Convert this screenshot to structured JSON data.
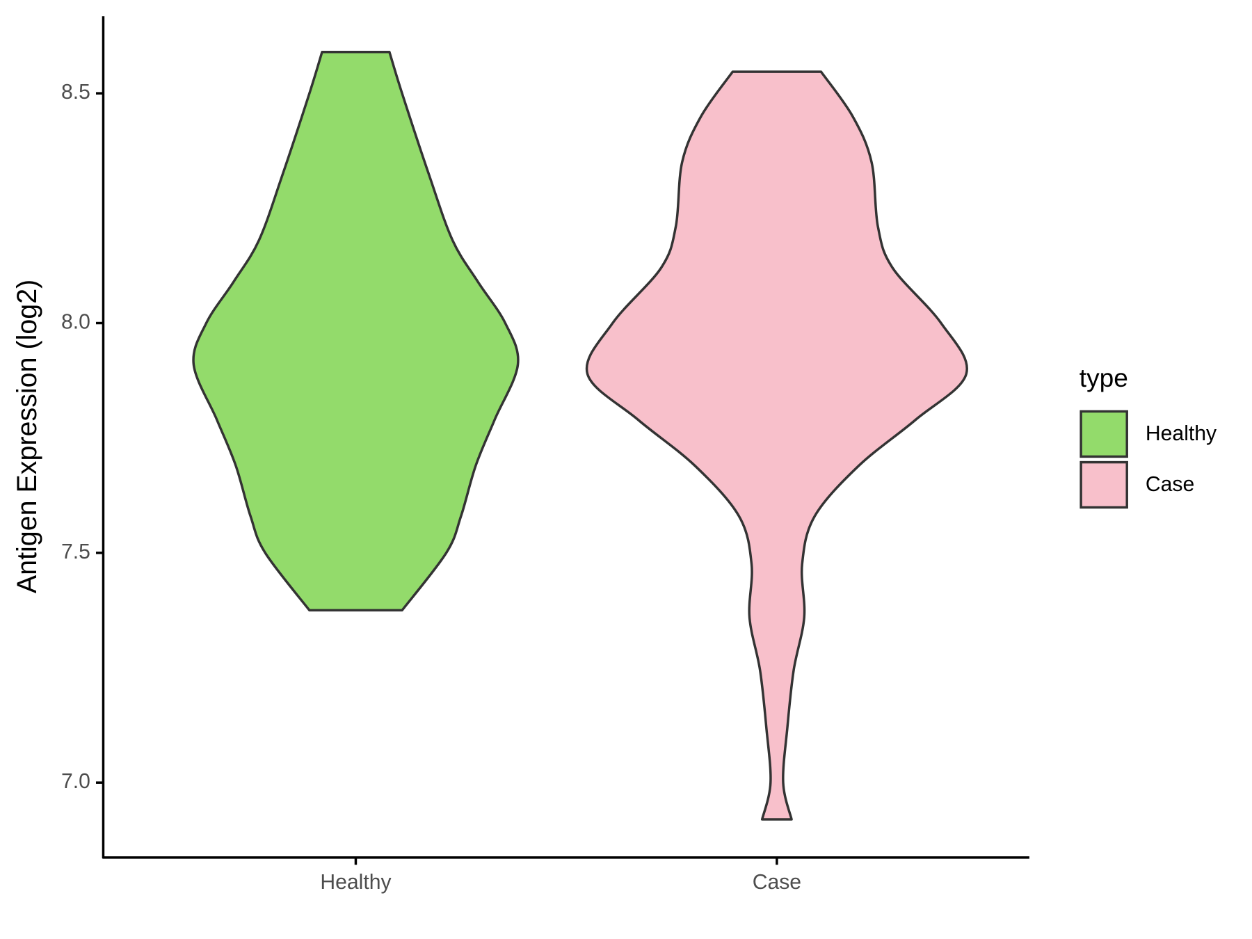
{
  "chart_data": {
    "type": "violin",
    "y_label": "Antigen Expression (log2)",
    "categories": [
      "Healthy",
      "Case"
    ],
    "ylim": [
      6.837,
      8.668
    ],
    "yticks": [
      {
        "value": 7.0,
        "label": "7.0"
      },
      {
        "value": 7.5,
        "label": "7.5"
      },
      {
        "value": 8.0,
        "label": "8.0"
      },
      {
        "value": 8.5,
        "label": "8.5"
      }
    ],
    "legend_title": "type",
    "legend_position": "right",
    "series": [
      {
        "name": "Healthy",
        "color": "#93db6b",
        "y": [
          8.59,
          8.5,
          8.32,
          8.18,
          8.09,
          8.0,
          7.91,
          7.79,
          7.69,
          7.58,
          7.5,
          7.375
        ],
        "width": [
          0.16,
          0.22,
          0.35,
          0.46,
          0.58,
          0.71,
          0.77,
          0.66,
          0.57,
          0.5,
          0.43,
          0.22
        ]
      },
      {
        "name": "Case",
        "color": "#f8c0cb",
        "y": [
          8.547,
          8.45,
          8.35,
          8.21,
          8.12,
          8.0,
          7.89,
          7.79,
          7.69,
          7.58,
          7.475,
          7.36,
          7.245,
          7.12,
          7.0,
          6.92
        ],
        "width": [
          0.21,
          0.36,
          0.45,
          0.48,
          0.55,
          0.78,
          0.9,
          0.66,
          0.39,
          0.18,
          0.12,
          0.13,
          0.08,
          0.05,
          0.03,
          0.07
        ]
      }
    ]
  }
}
